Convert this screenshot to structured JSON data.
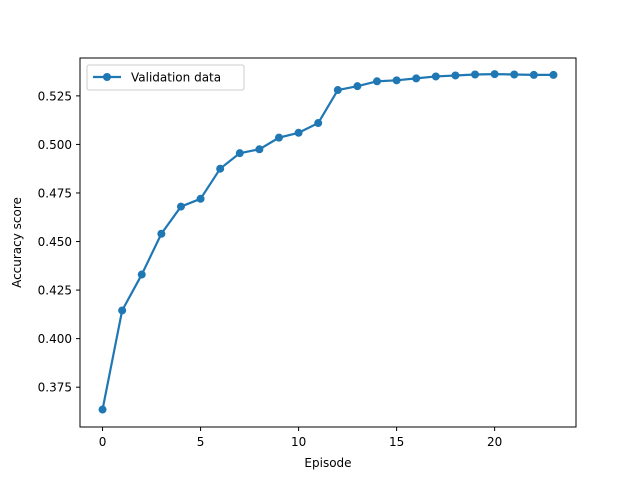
{
  "chart_data": {
    "type": "line",
    "title": "",
    "xlabel": "Episode",
    "ylabel": "Accuracy score",
    "xlim": [
      -1.15,
      24.15
    ],
    "ylim": [
      0.3545,
      0.5445
    ],
    "x_ticks": [
      0,
      5,
      10,
      15,
      20
    ],
    "y_ticks": [
      0.375,
      0.4,
      0.425,
      0.45,
      0.475,
      0.5,
      0.525
    ],
    "x_tick_labels": [
      "0",
      "5",
      "10",
      "15",
      "20"
    ],
    "y_tick_labels": [
      "0.375",
      "0.400",
      "0.425",
      "0.450",
      "0.475",
      "0.500",
      "0.525"
    ],
    "grid": false,
    "legend_position": "top-left",
    "series": [
      {
        "name": "Validation data",
        "color": "#1f77b4",
        "marker": "circle",
        "x": [
          0,
          1,
          2,
          3,
          4,
          5,
          6,
          7,
          8,
          9,
          10,
          11,
          12,
          13,
          14,
          15,
          16,
          17,
          18,
          19,
          20,
          21,
          22,
          23
        ],
        "y": [
          0.3635,
          0.4145,
          0.433,
          0.454,
          0.468,
          0.472,
          0.4875,
          0.4955,
          0.4975,
          0.5035,
          0.506,
          0.511,
          0.528,
          0.53,
          0.5325,
          0.533,
          0.534,
          0.535,
          0.5355,
          0.536,
          0.5362,
          0.536,
          0.5358,
          0.5358
        ]
      }
    ]
  }
}
